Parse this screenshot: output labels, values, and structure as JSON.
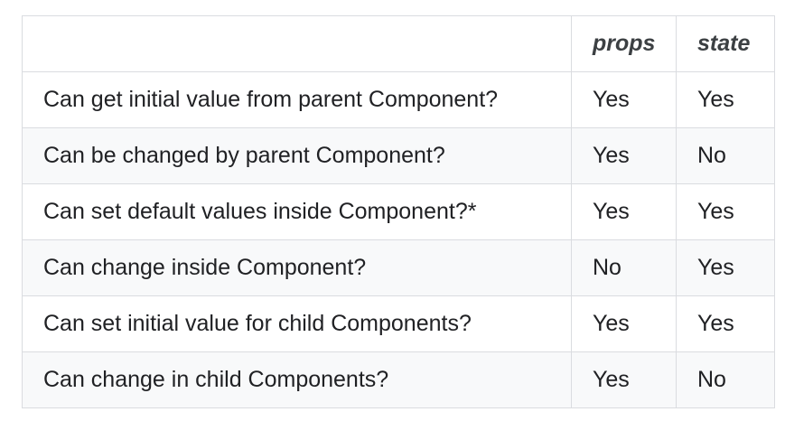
{
  "table": {
    "headers": [
      "",
      "props",
      "state"
    ],
    "rows": [
      {
        "label": "Can get initial value from parent Component?",
        "props": "Yes",
        "state": "Yes"
      },
      {
        "label": "Can be changed by parent Component?",
        "props": "Yes",
        "state": "No"
      },
      {
        "label": "Can set default values inside Component?*",
        "props": "Yes",
        "state": "Yes"
      },
      {
        "label": "Can change inside Component?",
        "props": "No",
        "state": "Yes"
      },
      {
        "label": "Can set initial value for child Components?",
        "props": "Yes",
        "state": "Yes"
      },
      {
        "label": "Can change in child Components?",
        "props": "Yes",
        "state": "No"
      }
    ]
  },
  "colors": {
    "border": "#dadce0",
    "stripe": "#f8f9fa",
    "text": "#202124"
  }
}
